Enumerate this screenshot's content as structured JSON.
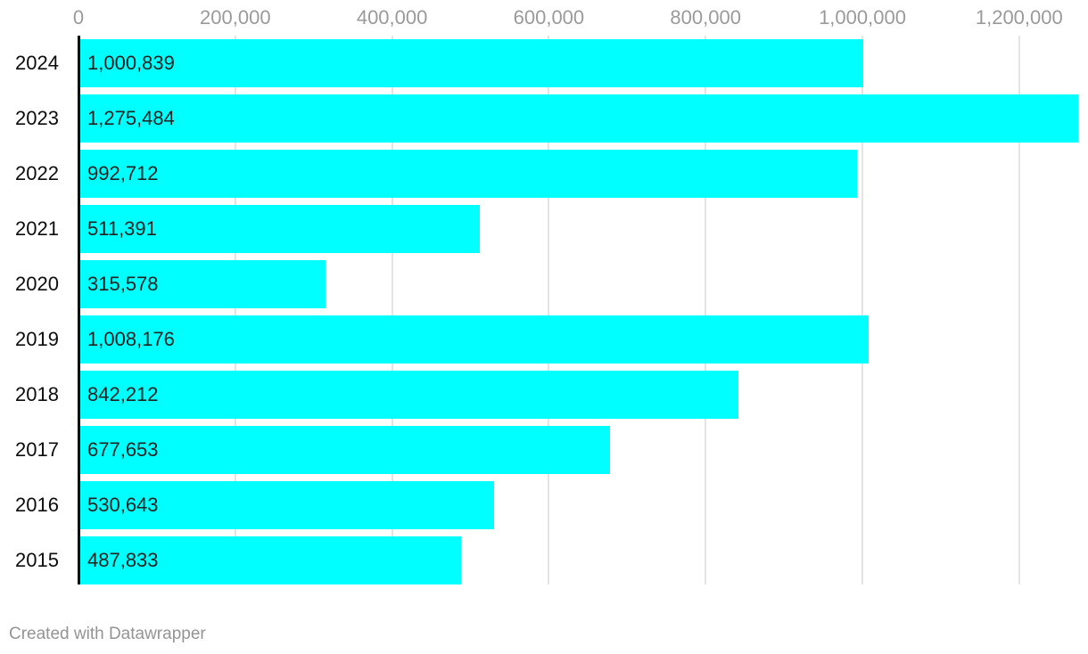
{
  "chart_data": {
    "type": "bar",
    "orientation": "horizontal",
    "title": "",
    "xlabel": "",
    "ylabel": "",
    "categories": [
      "2024",
      "2023",
      "2022",
      "2021",
      "2020",
      "2019",
      "2018",
      "2017",
      "2016",
      "2015"
    ],
    "values": [
      1000839,
      1275484,
      992712,
      511391,
      315578,
      1008176,
      842212,
      677653,
      530643,
      487833
    ],
    "value_labels": [
      "1,000,839",
      "1,275,484",
      "992,712",
      "511,391",
      "315,578",
      "1,008,176",
      "842,212",
      "677,653",
      "530,643",
      "487,833"
    ],
    "x_axis": {
      "position": "top",
      "ticks": [
        0,
        200000,
        400000,
        600000,
        800000,
        1000000,
        1200000
      ],
      "tick_labels": [
        "0",
        "200,000",
        "400,000",
        "600,000",
        "800,000",
        "1,000,000",
        "1,200,000"
      ],
      "range": [
        0,
        1288000
      ],
      "grid": true
    },
    "legend": "none"
  },
  "footer": {
    "credit": "Created with Datawrapper"
  },
  "colors": {
    "bar": "#00ffff",
    "axis_line": "#0a0a0a",
    "gridline": "#e4e4e4",
    "tick_label": "#9a9a9a",
    "category_label": "#0d0d0d",
    "value_label": "#222222",
    "credit": "#949494",
    "background": "#ffffff"
  }
}
